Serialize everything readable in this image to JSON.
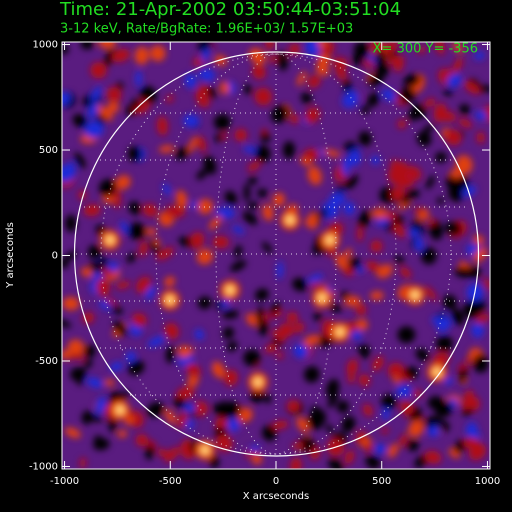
{
  "chart_data": {
    "type": "image",
    "title": "Time: 21-Apr-2002 03:50:44-03:51:04",
    "subtitle": "3-12 keV, Rate/BgRate:  1.96E+03/  1.57E+03",
    "annotation": "X=  300 Y= -356",
    "xlabel": "X arcseconds",
    "ylabel": "Y arcseconds",
    "xlim": [
      -1012,
      1012
    ],
    "ylim": [
      -1012,
      1012
    ],
    "xticks": [
      -1000,
      -500,
      0,
      500,
      1000
    ],
    "yticks": [
      -1000,
      -500,
      0,
      500,
      1000
    ]
  }
}
